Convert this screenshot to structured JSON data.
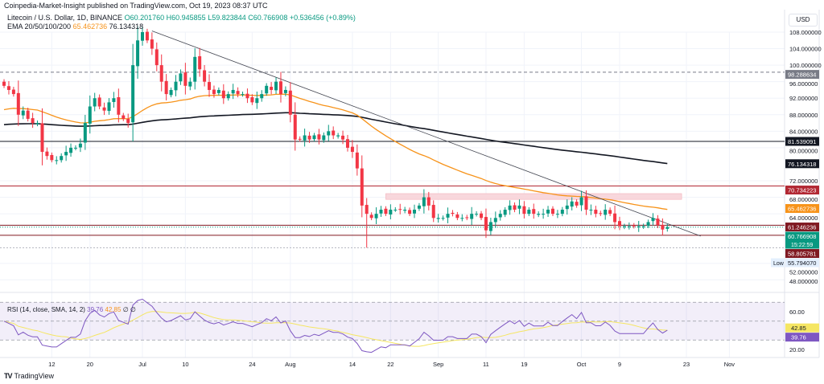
{
  "header": {
    "published": "Coinpedia-Market-Insight published on TradingView.com, Oct 19, 2023 08:37 UTC",
    "symbol": "Litecoin / U.S. Dollar, 1D, BINANCE",
    "open": "O60.201760",
    "high": "H60.945855",
    "low": "L59.823844",
    "close": "C60.766908",
    "change": "+0.536456 (+0.89%)",
    "ema_label": "EMA 20/50/100/200",
    "ema50": "65.462736",
    "ema200": "76.134318"
  },
  "rsi_legend": {
    "label": "RSI (14, close, SMA, 14, 2)",
    "rsi": "39.76",
    "sma": "42.85",
    "extra": "∅ ∅"
  },
  "axis": {
    "currency": "USD"
  },
  "footer": {
    "brand": "TradingView"
  },
  "colors": {
    "up": "#089981",
    "down": "#f23645",
    "ema50": "#f7931a",
    "ema200": "#131722",
    "rsi": "#7e57c2",
    "rsi_sma": "#f5e663",
    "resistance": "#b22833",
    "zone": "#f8d7dc"
  },
  "chart_data": {
    "type": "candlestick",
    "start_date": "2023-06-02",
    "closes": [
      95,
      94,
      93,
      88,
      89,
      87,
      86,
      86,
      79,
      78,
      77,
      77,
      78,
      79,
      80,
      80,
      81,
      86,
      90,
      92,
      90,
      89,
      91,
      92,
      88,
      87,
      86,
      100,
      106,
      108,
      106,
      104,
      100,
      96,
      93,
      94,
      96,
      98,
      95,
      96,
      102,
      99,
      96,
      94,
      93,
      94,
      92,
      93,
      94,
      93,
      93,
      92,
      91,
      92,
      93,
      95,
      94,
      96,
      93,
      94,
      88,
      82,
      82,
      83,
      82,
      83,
      82,
      83,
      84,
      83,
      83,
      82,
      80,
      79,
      75,
      66,
      64,
      63,
      64,
      65,
      64,
      65,
      65,
      65,
      65,
      64,
      65,
      66,
      68,
      66,
      63,
      63,
      63,
      64,
      64,
      63,
      63,
      63,
      64,
      64,
      63,
      60,
      62,
      63,
      64,
      65,
      66,
      65,
      66,
      64,
      65,
      64,
      64,
      64,
      65,
      64,
      64,
      65,
      66,
      67,
      66,
      68,
      65,
      65,
      64,
      64,
      65,
      64,
      62,
      61,
      61,
      61,
      61,
      61,
      61,
      62,
      63,
      61.3,
      60.2,
      60.766908
    ],
    "price_ticks": [
      108,
      104,
      100,
      96,
      92,
      88,
      84,
      80,
      72,
      68,
      64,
      52,
      48
    ],
    "rsi_ticks": [
      60,
      20
    ],
    "x_ticks": [
      {
        "label": "12",
        "date": "2023-06-12"
      },
      {
        "label": "20",
        "date": "2023-06-20"
      },
      {
        "label": "Jul",
        "date": "2023-07-01"
      },
      {
        "label": "10",
        "date": "2023-07-10"
      },
      {
        "label": "24",
        "date": "2023-07-24"
      },
      {
        "label": "Aug",
        "date": "2023-08-01"
      },
      {
        "label": "14",
        "date": "2023-08-14"
      },
      {
        "label": "22",
        "date": "2023-08-22"
      },
      {
        "label": "Sep",
        "date": "2023-09-01"
      },
      {
        "label": "11",
        "date": "2023-09-11"
      },
      {
        "label": "19",
        "date": "2023-09-19"
      },
      {
        "label": "Oct",
        "date": "2023-10-01"
      },
      {
        "label": "9",
        "date": "2023-10-09"
      },
      {
        "label": "23",
        "date": "2023-10-23"
      },
      {
        "label": "Nov",
        "date": "2023-11-01"
      }
    ],
    "levels": [
      {
        "value": 98.288634,
        "label": "98.288634",
        "style": "dashed",
        "color": "#787b86"
      },
      {
        "value": 81.539091,
        "label": "81.539091",
        "style": "solid",
        "color": "#131722"
      },
      {
        "value": 70.734223,
        "label": "70.734223",
        "style": "solid",
        "color": "#b22833"
      },
      {
        "value": 61.246236,
        "label": "61.246236",
        "style": "solid",
        "color": "#801922"
      },
      {
        "value": 58.805781,
        "label": "58.805781",
        "style": "solid",
        "color": "#801922"
      }
    ],
    "price_badges": [
      {
        "value": 76.134318,
        "label": "76.134318",
        "color": "#131722"
      },
      {
        "value": 65.462736,
        "label": "65.462736",
        "color": "#f7931a"
      },
      {
        "value": 60.766908,
        "label": "60.766908",
        "sub": "15:22:59",
        "color": "#089981"
      }
    ],
    "low": {
      "value": 55.79407,
      "label": "55.794070",
      "tag": "Low"
    },
    "zone": {
      "from": "2023-08-21",
      "to": "2023-10-22",
      "low": 67.5,
      "high": 68.9
    },
    "trendline": {
      "from": {
        "date": "2023-07-03",
        "price": 108.3
      },
      "to": {
        "date": "2023-10-26",
        "price": 58.6
      }
    }
  }
}
